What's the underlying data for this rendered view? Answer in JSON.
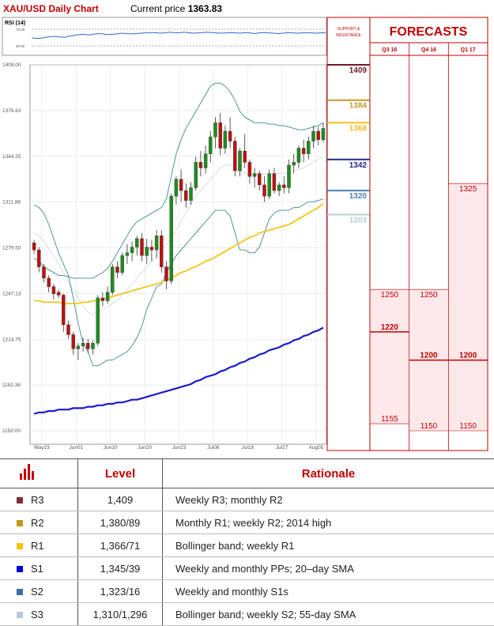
{
  "chart_data": {
    "type": "candlestick",
    "title": "XAU/USD Daily Chart",
    "subtitle_label": "Current price",
    "current_price": "1363.83",
    "rsi_label": "RSI (14)",
    "rsi_ticks": [
      "70.00",
      "30.00"
    ],
    "rsi_values": [
      46,
      44,
      45,
      47,
      49,
      50,
      48,
      47,
      51,
      53,
      55,
      56,
      54,
      56,
      58,
      57,
      55,
      56,
      57,
      59,
      58,
      57,
      58,
      59,
      60,
      61,
      61,
      59,
      60,
      62,
      61,
      60,
      62,
      61,
      59,
      60,
      61,
      62,
      61,
      60,
      59,
      60,
      61,
      60,
      59,
      61,
      60,
      58,
      60,
      61,
      60,
      59,
      58,
      59,
      61,
      60,
      59,
      60,
      61,
      60,
      59,
      60,
      61
    ],
    "y_ticks": [
      "1409.00",
      "1376.63",
      "1344.25",
      "1311.88",
      "1279.50",
      "1247.13",
      "1214.75",
      "1182.38",
      "1150.00"
    ],
    "ylim": [
      1150,
      1409
    ],
    "x_labels": [
      "May23",
      "Jun01",
      "Jun10",
      "Jun20",
      "Jun23",
      "Jul08",
      "Jul18",
      "Jul27",
      "Aug05"
    ],
    "candles": [
      [
        1283,
        1285,
        1275,
        1278
      ],
      [
        1278,
        1280,
        1262,
        1266
      ],
      [
        1266,
        1268,
        1255,
        1258
      ],
      [
        1258,
        1260,
        1248,
        1252
      ],
      [
        1252,
        1254,
        1243,
        1247
      ],
      [
        1248,
        1250,
        1244,
        1246
      ],
      [
        1246,
        1247,
        1220,
        1225
      ],
      [
        1225,
        1228,
        1215,
        1218
      ],
      [
        1218,
        1220,
        1204,
        1208
      ],
      [
        1208,
        1212,
        1200,
        1210
      ],
      [
        1210,
        1216,
        1206,
        1212
      ],
      [
        1212,
        1215,
        1205,
        1208
      ],
      [
        1208,
        1214,
        1204,
        1212
      ],
      [
        1212,
        1246,
        1210,
        1244
      ],
      [
        1244,
        1248,
        1238,
        1242
      ],
      [
        1242,
        1252,
        1240,
        1248
      ],
      [
        1248,
        1268,
        1246,
        1266
      ],
      [
        1266,
        1270,
        1258,
        1262
      ],
      [
        1262,
        1276,
        1260,
        1274
      ],
      [
        1274,
        1282,
        1268,
        1276
      ],
      [
        1276,
        1284,
        1270,
        1280
      ],
      [
        1280,
        1288,
        1274,
        1286
      ],
      [
        1286,
        1290,
        1270,
        1274
      ],
      [
        1274,
        1286,
        1268,
        1280
      ],
      [
        1280,
        1285,
        1270,
        1278
      ],
      [
        1278,
        1292,
        1272,
        1288
      ],
      [
        1288,
        1292,
        1262,
        1266
      ],
      [
        1266,
        1270,
        1250,
        1256
      ],
      [
        1256,
        1318,
        1254,
        1316
      ],
      [
        1316,
        1330,
        1310,
        1328
      ],
      [
        1328,
        1335,
        1312,
        1320
      ],
      [
        1320,
        1325,
        1308,
        1313
      ],
      [
        1313,
        1326,
        1310,
        1322
      ],
      [
        1322,
        1344,
        1320,
        1340
      ],
      [
        1340,
        1348,
        1330,
        1336
      ],
      [
        1336,
        1352,
        1332,
        1346
      ],
      [
        1346,
        1362,
        1340,
        1358
      ],
      [
        1358,
        1372,
        1350,
        1368
      ],
      [
        1368,
        1375,
        1345,
        1350
      ],
      [
        1350,
        1366,
        1346,
        1362
      ],
      [
        1362,
        1372,
        1350,
        1355
      ],
      [
        1355,
        1358,
        1330,
        1334
      ],
      [
        1334,
        1350,
        1330,
        1348
      ],
      [
        1348,
        1360,
        1336,
        1340
      ],
      [
        1340,
        1342,
        1325,
        1330
      ],
      [
        1330,
        1336,
        1322,
        1332
      ],
      [
        1332,
        1334,
        1320,
        1324
      ],
      [
        1324,
        1330,
        1312,
        1316
      ],
      [
        1316,
        1335,
        1314,
        1332
      ],
      [
        1332,
        1336,
        1318,
        1320
      ],
      [
        1320,
        1326,
        1316,
        1324
      ],
      [
        1324,
        1330,
        1318,
        1322
      ],
      [
        1322,
        1342,
        1318,
        1338
      ],
      [
        1338,
        1346,
        1332,
        1340
      ],
      [
        1340,
        1352,
        1336,
        1350
      ],
      [
        1350,
        1356,
        1340,
        1346
      ],
      [
        1346,
        1358,
        1342,
        1355
      ],
      [
        1355,
        1366,
        1350,
        1362
      ],
      [
        1362,
        1365,
        1352,
        1356
      ],
      [
        1356,
        1368,
        1354,
        1364
      ]
    ],
    "sma55": [
      1242,
      1242,
      1241,
      1241,
      1241,
      1241,
      1240,
      1240,
      1240,
      1240,
      1241,
      1241,
      1242,
      1242,
      1243,
      1244,
      1245,
      1246,
      1247,
      1248,
      1249,
      1250,
      1251,
      1252,
      1253,
      1254,
      1255,
      1257,
      1258,
      1260,
      1262,
      1263,
      1265,
      1266,
      1268,
      1270,
      1271,
      1273,
      1275,
      1277,
      1279,
      1281,
      1283,
      1285,
      1287,
      1288,
      1290,
      1291,
      1292,
      1293,
      1294,
      1295,
      1296,
      1298,
      1300,
      1302,
      1304,
      1306,
      1308,
      1311
    ],
    "sma200": [
      1162,
      1163,
      1163,
      1164,
      1164,
      1165,
      1165,
      1165,
      1166,
      1166,
      1166,
      1167,
      1167,
      1168,
      1168,
      1169,
      1169,
      1170,
      1170,
      1171,
      1172,
      1172,
      1173,
      1174,
      1175,
      1176,
      1177,
      1178,
      1179,
      1180,
      1181,
      1182,
      1183,
      1185,
      1186,
      1188,
      1189,
      1190,
      1192,
      1193,
      1195,
      1196,
      1198,
      1199,
      1201,
      1202,
      1204,
      1205,
      1207,
      1208,
      1209,
      1211,
      1212,
      1214,
      1215,
      1217,
      1218,
      1220,
      1221,
      1223
    ],
    "bb_upper": [
      1272,
      1270,
      1266,
      1264,
      1262,
      1260,
      1260,
      1259,
      1258,
      1258,
      1258,
      1258,
      1258,
      1260,
      1262,
      1265,
      1270,
      1276,
      1282,
      1288,
      1294,
      1298,
      1300,
      1302,
      1304,
      1306,
      1308,
      1314,
      1330,
      1346,
      1356,
      1364,
      1370,
      1376,
      1382,
      1388,
      1394,
      1396,
      1396,
      1394,
      1390,
      1384,
      1376,
      1372,
      1370,
      1368,
      1368,
      1368,
      1367,
      1367,
      1366,
      1366,
      1365,
      1364,
      1363,
      1363,
      1364,
      1365,
      1366,
      1368
    ],
    "bb_lower": [
      1310,
      1308,
      1304,
      1296,
      1286,
      1276,
      1268,
      1260,
      1244,
      1226,
      1212,
      1206,
      1196,
      1196,
      1198,
      1200,
      1200,
      1202,
      1204,
      1206,
      1210,
      1216,
      1224,
      1236,
      1244,
      1252,
      1254,
      1262,
      1268,
      1274,
      1278,
      1282,
      1286,
      1290,
      1294,
      1298,
      1302,
      1306,
      1306,
      1306,
      1302,
      1290,
      1278,
      1278,
      1276,
      1276,
      1280,
      1290,
      1300,
      1304,
      1306,
      1306,
      1306,
      1308,
      1308,
      1310,
      1312,
      1312,
      1313,
      1314
    ],
    "bb_mid": [
      1290,
      1288,
      1284,
      1279,
      1274,
      1268,
      1262,
      1256,
      1250,
      1244,
      1238,
      1234,
      1232,
      1234,
      1236,
      1238,
      1240,
      1242,
      1246,
      1250,
      1254,
      1258,
      1262,
      1266,
      1270,
      1274,
      1278,
      1282,
      1286,
      1292,
      1298,
      1304,
      1310,
      1316,
      1320,
      1324,
      1328,
      1332,
      1336,
      1338,
      1338,
      1336,
      1334,
      1332,
      1332,
      1332,
      1332,
      1332,
      1332,
      1332,
      1332,
      1332,
      1333,
      1334,
      1335,
      1336,
      1338,
      1340,
      1342,
      1344
    ],
    "support_resistance_header": [
      "SUPPORT &",
      "RESISTANCE"
    ],
    "support_resistance": [
      {
        "label": "1409",
        "value": 1409,
        "color": "#6e1a2a"
      },
      {
        "label": "1384",
        "value": 1384,
        "color": "#c89a34"
      },
      {
        "label": "1368",
        "value": 1368,
        "color": "#f2c11e"
      },
      {
        "label": "1342",
        "value": 1342,
        "color": "#1f2a8a"
      },
      {
        "label": "1320",
        "value": 1320,
        "color": "#4a7fb0"
      },
      {
        "label": "1303",
        "value": 1303,
        "color": "#b6d2d6"
      }
    ],
    "forecasts_title": "FORECASTS",
    "forecast_columns": [
      "Q3 16",
      "Q4 16",
      "Q1 17"
    ],
    "forecasts": [
      {
        "high": "1250",
        "high_v": 1250,
        "mid": "1220",
        "mid_v": 1220,
        "low": "1155",
        "low_v": 1155
      },
      {
        "high": "1250",
        "high_v": 1250,
        "mid": "1200",
        "mid_v": 1200,
        "low": "1150",
        "low_v": 1150
      },
      {
        "high": "1325",
        "high_v": 1325,
        "mid": "1200",
        "mid_v": 1200,
        "low": "1150",
        "low_v": 1150
      }
    ]
  },
  "table": {
    "headers": [
      "Level",
      "Rationale"
    ],
    "rows": [
      {
        "name": "R3",
        "level": "1,409",
        "rationale": "Weekly R3; monthly R2",
        "color": "#7b2f34"
      },
      {
        "name": "R2",
        "level": "1,380/89",
        "rationale": "Monthly R1; weekly R2; 2014 high",
        "color": "#c8961e"
      },
      {
        "name": "R1",
        "level": "1,366/71",
        "rationale": "Bollinger band; weekly R1",
        "color": "#f5c400"
      },
      {
        "name": "S1",
        "level": "1,345/39",
        "rationale": "Weekly and monthly PPs; 20–day SMA",
        "color": "#0000cc"
      },
      {
        "name": "S2",
        "level": "1,323/16",
        "rationale": "Weekly and monthly S1s",
        "color": "#3d6ea8"
      },
      {
        "name": "S3",
        "level": "1,310/1,296",
        "rationale": "Bollinger band; weekly S2; 55-day SMA",
        "color": "#b8c8e0"
      }
    ]
  },
  "colors": {
    "accent": "#c00000",
    "bull": "#1e8c1e",
    "bear": "#c01010",
    "sma55": "#f5c000",
    "sma200": "#1a1acc",
    "bollinger": "#3e8a8e",
    "forecast_fill": "#fde8ea"
  }
}
